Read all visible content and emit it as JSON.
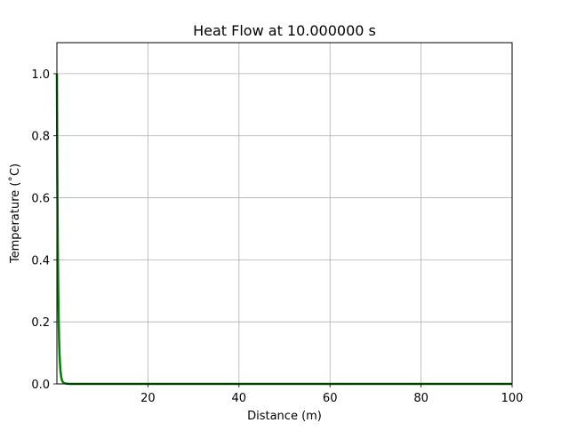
{
  "chart_data": {
    "type": "line",
    "title": "Heat Flow at 10.000000 s",
    "xlabel": "Distance (m)",
    "ylabel": "Temperature (˚C)",
    "xlim": [
      0,
      100
    ],
    "ylim": [
      0,
      1.1
    ],
    "xticks": [
      {
        "value": 20,
        "label": "20"
      },
      {
        "value": 40,
        "label": "40"
      },
      {
        "value": 60,
        "label": "60"
      },
      {
        "value": 80,
        "label": "80"
      },
      {
        "value": 100,
        "label": "100"
      }
    ],
    "yticks": [
      {
        "value": 0.0,
        "label": "0.0"
      },
      {
        "value": 0.2,
        "label": "0.2"
      },
      {
        "value": 0.4,
        "label": "0.4"
      },
      {
        "value": 0.6,
        "label": "0.6"
      },
      {
        "value": 0.8,
        "label": "0.8"
      },
      {
        "value": 1.0,
        "label": "1.0"
      }
    ],
    "grid": true,
    "series": [
      {
        "color": "#008000",
        "x": [
          0,
          0.1,
          0.2,
          0.3,
          0.4,
          0.5,
          0.6,
          0.7,
          0.8,
          1.0,
          1.2,
          1.5,
          2.0,
          2.5,
          3.0,
          4.0,
          5.0,
          10,
          20,
          40,
          60,
          80,
          100
        ],
        "y": [
          1.0,
          0.66,
          0.44,
          0.3,
          0.2,
          0.13,
          0.088,
          0.06,
          0.04,
          0.018,
          0.008,
          0.003,
          0.001,
          0.0003,
          0.0001,
          0,
          0,
          0,
          0,
          0,
          0,
          0,
          0
        ]
      }
    ]
  }
}
